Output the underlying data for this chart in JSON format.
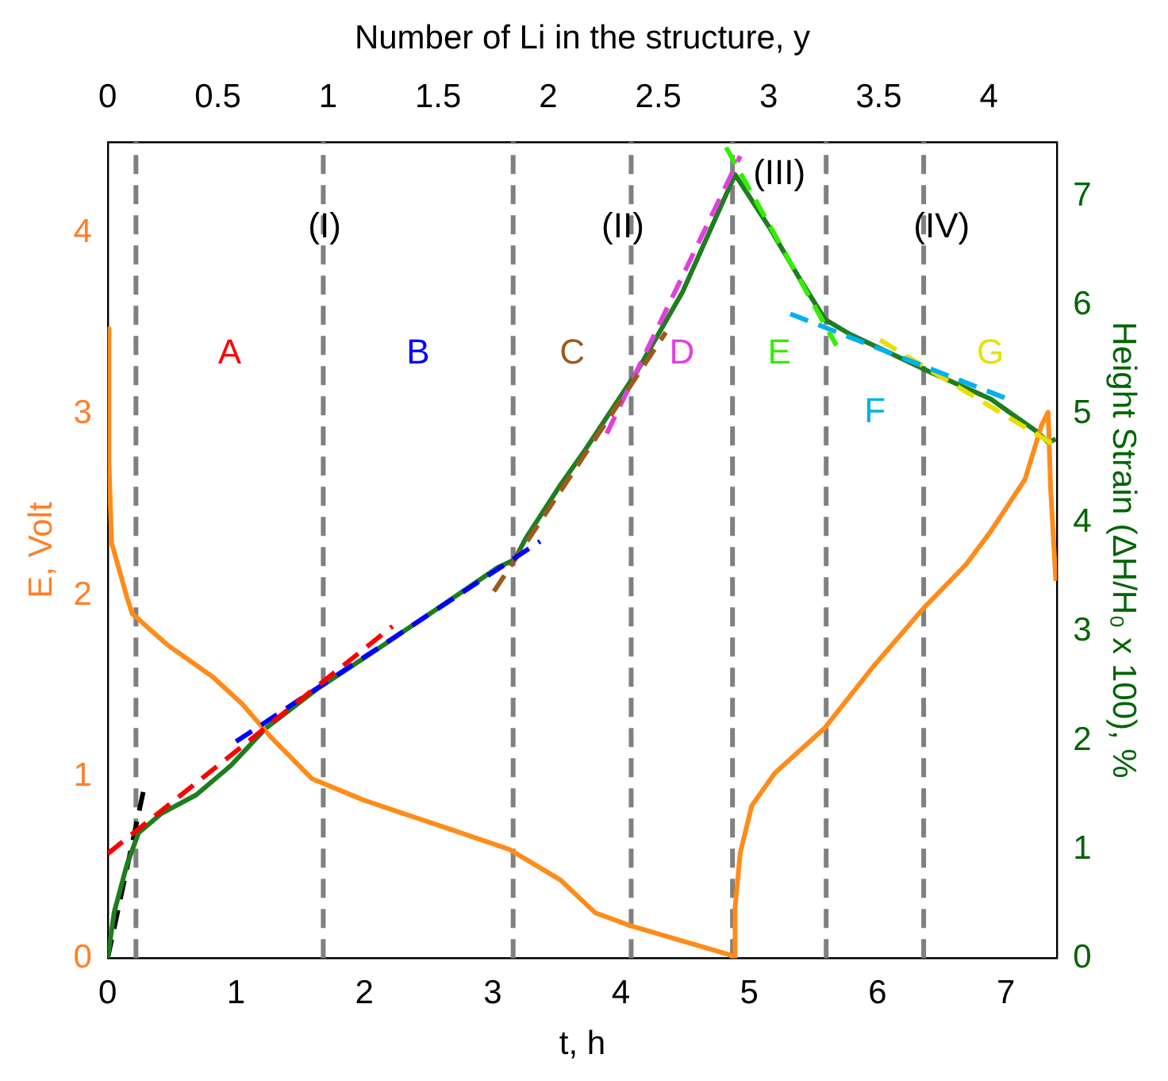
{
  "chart_data": {
    "type": "line",
    "xlabel": "t, h",
    "x2label": "Number of Li in the structure, y",
    "ylabel": "E, Volt",
    "y2label": "Height Strain (ΔH/H₀ x 100), %",
    "xlim": [
      0,
      7.4
    ],
    "xticks": [
      0,
      1,
      2,
      3,
      4,
      5,
      6,
      7
    ],
    "x2lim": [
      0,
      4.31
    ],
    "x2ticks": [
      0,
      0.5,
      1,
      1.5,
      2,
      2.5,
      3,
      3.5,
      4
    ],
    "ylim": [
      0,
      4.5
    ],
    "yticks": [
      0,
      1,
      2,
      3,
      4
    ],
    "y2lim": [
      0,
      7.5
    ],
    "y2ticks": [
      0,
      1,
      2,
      3,
      4,
      5,
      6,
      7
    ],
    "grid": false,
    "legend": false,
    "marker": "none",
    "series": [
      {
        "color": "#ff8c1a",
        "line_style": "solid",
        "x": [
          0.01,
          0.01,
          0.03,
          0.15,
          0.19,
          0.46,
          0.82,
          1.05,
          1.27,
          1.59,
          2.0,
          2.63,
          3.13,
          3.53,
          3.8,
          4.07,
          4.84,
          4.89,
          4.89,
          4.93,
          5.02,
          5.2,
          5.59,
          5.97,
          6.36,
          6.69,
          6.88,
          7.15,
          7.28,
          7.33,
          7.35,
          7.39
        ],
        "values": [
          3.47,
          2.73,
          2.29,
          1.99,
          1.9,
          1.73,
          1.55,
          1.4,
          1.22,
          0.99,
          0.87,
          0.72,
          0.6,
          0.43,
          0.25,
          0.18,
          0.02,
          0,
          0.28,
          0.58,
          0.84,
          1.02,
          1.27,
          1.61,
          1.93,
          2.17,
          2.35,
          2.64,
          2.94,
          3.01,
          2.58,
          2.08
        ]
      },
      {
        "color": "#1e7d1e",
        "axis": "y2",
        "line_style": "solid",
        "x": [
          0,
          0.05,
          0.15,
          0.24,
          0.42,
          0.69,
          0.96,
          1.23,
          1.64,
          2.09,
          2.58,
          3.04,
          3.17,
          3.26,
          3.53,
          3.71,
          4.12,
          4.48,
          4.89,
          5.16,
          5.38,
          5.59,
          5.79,
          6.06,
          6.42,
          6.88,
          7.24,
          7.33,
          7.39
        ],
        "values": [
          0,
          0.42,
          0.86,
          1.15,
          1.33,
          1.5,
          1.77,
          2.11,
          2.48,
          2.83,
          3.22,
          3.59,
          3.66,
          3.86,
          4.35,
          4.65,
          5.38,
          6.12,
          7.2,
          6.71,
          6.27,
          5.87,
          5.73,
          5.58,
          5.38,
          5.14,
          4.84,
          4.74,
          4.77
        ]
      },
      {
        "color": "#000000",
        "axis": "y2",
        "line_style": "dashed",
        "x": [
          0,
          0.29
        ],
        "values": [
          0,
          1.6
        ]
      },
      {
        "name": "A",
        "color": "#ff0000",
        "axis": "y2",
        "line_style": "dashed",
        "x": [
          0,
          2.22
        ],
        "values": [
          0.96,
          3.05
        ]
      },
      {
        "name": "B",
        "color": "#0000ff",
        "axis": "y2",
        "line_style": "dashed",
        "x": [
          1.0,
          3.37
        ],
        "values": [
          1.99,
          3.83
        ]
      },
      {
        "name": "C",
        "color": "#9c5a1e",
        "axis": "y2",
        "line_style": "dashed",
        "x": [
          3.01,
          4.35
        ],
        "values": [
          3.37,
          5.75
        ]
      },
      {
        "name": "D",
        "color": "#e040e0",
        "axis": "y2",
        "line_style": "dashed",
        "x": [
          3.89,
          4.93
        ],
        "values": [
          4.82,
          7.37
        ]
      },
      {
        "name": "E",
        "color": "#33ee00",
        "axis": "y2",
        "line_style": "dashed",
        "x": [
          4.82,
          5.68
        ],
        "values": [
          7.45,
          5.63
        ]
      },
      {
        "name": "F",
        "color": "#00b0f0",
        "axis": "y2",
        "line_style": "dashed",
        "x": [
          5.32,
          7.01
        ],
        "values": [
          5.92,
          5.14
        ]
      },
      {
        "name": "G",
        "color": "#e8e000",
        "axis": "y2",
        "line_style": "dashed",
        "x": [
          6.02,
          7.4
        ],
        "values": [
          5.68,
          4.7
        ]
      }
    ],
    "ref_lines": [
      {
        "axis": "x",
        "value": 0.22,
        "color": "#808080",
        "line_style": "dashed"
      },
      {
        "axis": "x",
        "value": 1.68,
        "color": "#808080",
        "line_style": "dashed"
      },
      {
        "axis": "x",
        "value": 3.16,
        "color": "#808080",
        "line_style": "dashed"
      },
      {
        "axis": "x",
        "value": 4.08,
        "color": "#808080",
        "line_style": "dashed"
      },
      {
        "axis": "x",
        "value": 4.87,
        "color": "#808080",
        "line_style": "dashed"
      },
      {
        "axis": "x",
        "value": 5.6,
        "color": "#808080",
        "line_style": "dashed"
      },
      {
        "axis": "x",
        "value": 6.36,
        "color": "#808080",
        "line_style": "dashed"
      }
    ],
    "annotations": [
      "(I)",
      "(II)",
      "(III)",
      "(IV)"
    ]
  }
}
